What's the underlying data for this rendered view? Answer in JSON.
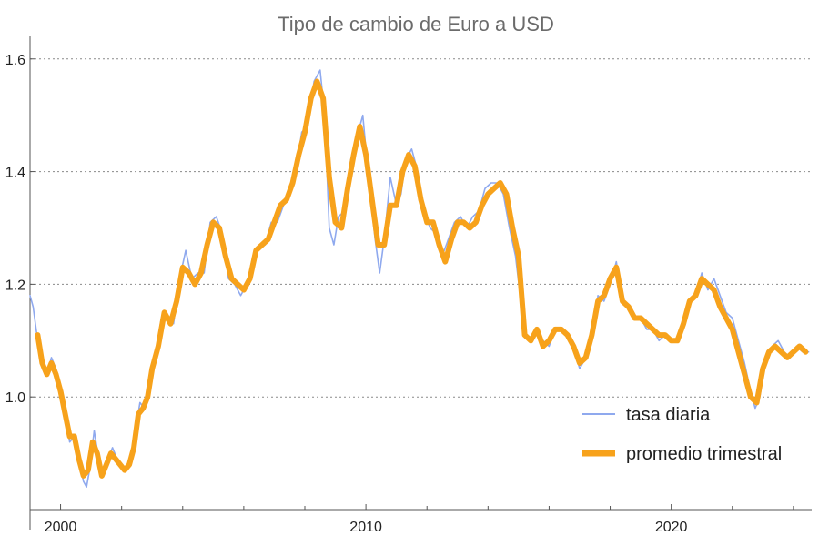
{
  "chart_data": {
    "type": "line",
    "title": "Tipo de cambio de Euro a USD",
    "xlabel": "",
    "ylabel": "",
    "xlim": [
      1999.0,
      2024.6
    ],
    "ylim": [
      0.8,
      1.64
    ],
    "x_ticks": [
      2000,
      2010,
      2020
    ],
    "x_tick_labels": [
      "2000",
      "2010",
      "2020"
    ],
    "x_minor_ticks": [
      2002,
      2004,
      2006,
      2008,
      2012,
      2014,
      2016,
      2018,
      2022,
      2024
    ],
    "y_ticks": [
      1.0,
      1.2,
      1.4,
      1.6
    ],
    "y_tick_labels": [
      "1.0",
      "1.2",
      "1.4",
      "1.6"
    ],
    "y_minor_ticks": [
      0.8
    ],
    "grid": "horizontal dotted",
    "legend": "bottom-right",
    "series": [
      {
        "name": "tasa diaria",
        "color": "#8fa9ee",
        "style": "thin",
        "x": [
          1999.0,
          1999.1,
          1999.25,
          1999.4,
          1999.55,
          1999.7,
          1999.85,
          2000.0,
          2000.15,
          2000.3,
          2000.45,
          2000.6,
          2000.75,
          2000.85,
          2000.95,
          2001.1,
          2001.25,
          2001.4,
          2001.55,
          2001.7,
          2001.85,
          2002.0,
          2002.15,
          2002.3,
          2002.45,
          2002.6,
          2002.75,
          2002.9,
          2003.1,
          2003.3,
          2003.5,
          2003.7,
          2003.9,
          2004.1,
          2004.3,
          2004.5,
          2004.7,
          2004.9,
          2005.1,
          2005.3,
          2005.5,
          2005.7,
          2005.9,
          2006.1,
          2006.3,
          2006.5,
          2006.7,
          2006.9,
          2007.1,
          2007.3,
          2007.5,
          2007.7,
          2007.9,
          2008.1,
          2008.3,
          2008.5,
          2008.65,
          2008.8,
          2008.95,
          2009.1,
          2009.3,
          2009.5,
          2009.7,
          2009.9,
          2010.1,
          2010.3,
          2010.45,
          2010.6,
          2010.8,
          2011.0,
          2011.15,
          2011.3,
          2011.5,
          2011.7,
          2011.9,
          2012.1,
          2012.3,
          2012.5,
          2012.7,
          2012.9,
          2013.1,
          2013.3,
          2013.5,
          2013.7,
          2013.9,
          2014.1,
          2014.3,
          2014.5,
          2014.7,
          2014.9,
          2015.05,
          2015.2,
          2015.4,
          2015.6,
          2015.8,
          2016.0,
          2016.2,
          2016.4,
          2016.6,
          2016.8,
          2017.0,
          2017.2,
          2017.4,
          2017.6,
          2017.8,
          2018.0,
          2018.2,
          2018.4,
          2018.6,
          2018.8,
          2019.0,
          2019.2,
          2019.4,
          2019.6,
          2019.8,
          2020.0,
          2020.2,
          2020.4,
          2020.6,
          2020.8,
          2021.0,
          2021.2,
          2021.4,
          2021.6,
          2021.8,
          2022.0,
          2022.2,
          2022.4,
          2022.6,
          2022.75,
          2022.9,
          2023.1,
          2023.3,
          2023.5,
          2023.7,
          2023.9,
          2024.1,
          2024.3,
          2024.5
        ],
        "values": [
          1.18,
          1.16,
          1.1,
          1.05,
          1.04,
          1.07,
          1.05,
          1.02,
          0.97,
          0.92,
          0.93,
          0.89,
          0.85,
          0.84,
          0.87,
          0.94,
          0.89,
          0.86,
          0.89,
          0.91,
          0.89,
          0.88,
          0.87,
          0.88,
          0.94,
          0.99,
          0.98,
          1.02,
          1.07,
          1.14,
          1.14,
          1.13,
          1.21,
          1.26,
          1.21,
          1.22,
          1.22,
          1.31,
          1.32,
          1.29,
          1.21,
          1.2,
          1.18,
          1.2,
          1.25,
          1.27,
          1.27,
          1.31,
          1.31,
          1.34,
          1.37,
          1.4,
          1.47,
          1.48,
          1.56,
          1.58,
          1.5,
          1.3,
          1.27,
          1.32,
          1.33,
          1.42,
          1.46,
          1.5,
          1.38,
          1.28,
          1.22,
          1.28,
          1.39,
          1.34,
          1.36,
          1.42,
          1.44,
          1.4,
          1.33,
          1.3,
          1.29,
          1.25,
          1.28,
          1.31,
          1.32,
          1.3,
          1.32,
          1.33,
          1.37,
          1.38,
          1.38,
          1.36,
          1.3,
          1.25,
          1.18,
          1.11,
          1.1,
          1.12,
          1.1,
          1.09,
          1.12,
          1.12,
          1.11,
          1.09,
          1.05,
          1.07,
          1.11,
          1.18,
          1.17,
          1.2,
          1.24,
          1.17,
          1.16,
          1.14,
          1.14,
          1.12,
          1.12,
          1.1,
          1.11,
          1.1,
          1.1,
          1.13,
          1.17,
          1.18,
          1.22,
          1.19,
          1.21,
          1.18,
          1.15,
          1.14,
          1.1,
          1.06,
          1.01,
          0.98,
          1.0,
          1.07,
          1.09,
          1.1,
          1.08,
          1.07,
          1.09,
          1.08,
          1.08
        ]
      },
      {
        "name": "promedio trimestral",
        "color": "#f7a21b",
        "style": "thick",
        "x": [
          1999.25,
          1999.4,
          1999.55,
          1999.7,
          1999.85,
          2000.0,
          2000.15,
          2000.3,
          2000.45,
          2000.6,
          2000.75,
          2000.9,
          2001.05,
          2001.2,
          2001.35,
          2001.5,
          2001.65,
          2001.8,
          2001.95,
          2002.1,
          2002.25,
          2002.4,
          2002.55,
          2002.7,
          2002.85,
          2003.0,
          2003.2,
          2003.4,
          2003.6,
          2003.8,
          2004.0,
          2004.2,
          2004.4,
          2004.6,
          2004.8,
          2005.0,
          2005.2,
          2005.4,
          2005.6,
          2005.8,
          2006.0,
          2006.2,
          2006.4,
          2006.6,
          2006.8,
          2007.0,
          2007.2,
          2007.4,
          2007.6,
          2007.8,
          2008.0,
          2008.2,
          2008.4,
          2008.6,
          2008.8,
          2009.0,
          2009.2,
          2009.4,
          2009.6,
          2009.8,
          2010.0,
          2010.2,
          2010.4,
          2010.6,
          2010.8,
          2011.0,
          2011.2,
          2011.4,
          2011.6,
          2011.8,
          2012.0,
          2012.2,
          2012.4,
          2012.6,
          2012.8,
          2013.0,
          2013.2,
          2013.4,
          2013.6,
          2013.8,
          2014.0,
          2014.2,
          2014.4,
          2014.6,
          2014.8,
          2015.0,
          2015.2,
          2015.4,
          2015.6,
          2015.8,
          2016.0,
          2016.2,
          2016.4,
          2016.6,
          2016.8,
          2017.0,
          2017.2,
          2017.4,
          2017.6,
          2017.8,
          2018.0,
          2018.2,
          2018.4,
          2018.6,
          2018.8,
          2019.0,
          2019.2,
          2019.4,
          2019.6,
          2019.8,
          2020.0,
          2020.2,
          2020.4,
          2020.6,
          2020.8,
          2021.0,
          2021.2,
          2021.4,
          2021.6,
          2021.8,
          2022.0,
          2022.2,
          2022.4,
          2022.6,
          2022.8,
          2023.0,
          2023.2,
          2023.4,
          2023.6,
          2023.8,
          2024.0,
          2024.2,
          2024.4
        ],
        "values": [
          1.11,
          1.06,
          1.04,
          1.06,
          1.04,
          1.01,
          0.97,
          0.93,
          0.93,
          0.89,
          0.86,
          0.87,
          0.92,
          0.9,
          0.86,
          0.88,
          0.9,
          0.89,
          0.88,
          0.87,
          0.88,
          0.91,
          0.97,
          0.98,
          1.0,
          1.05,
          1.09,
          1.15,
          1.13,
          1.17,
          1.23,
          1.22,
          1.2,
          1.22,
          1.27,
          1.31,
          1.3,
          1.25,
          1.21,
          1.2,
          1.19,
          1.21,
          1.26,
          1.27,
          1.28,
          1.31,
          1.34,
          1.35,
          1.38,
          1.43,
          1.47,
          1.53,
          1.56,
          1.53,
          1.39,
          1.31,
          1.3,
          1.37,
          1.43,
          1.48,
          1.43,
          1.35,
          1.27,
          1.27,
          1.34,
          1.34,
          1.4,
          1.43,
          1.41,
          1.35,
          1.31,
          1.31,
          1.27,
          1.24,
          1.28,
          1.31,
          1.31,
          1.3,
          1.31,
          1.34,
          1.36,
          1.37,
          1.38,
          1.36,
          1.3,
          1.25,
          1.11,
          1.1,
          1.12,
          1.09,
          1.1,
          1.12,
          1.12,
          1.11,
          1.09,
          1.06,
          1.07,
          1.11,
          1.17,
          1.18,
          1.21,
          1.23,
          1.17,
          1.16,
          1.14,
          1.14,
          1.13,
          1.12,
          1.11,
          1.11,
          1.1,
          1.1,
          1.13,
          1.17,
          1.18,
          1.21,
          1.2,
          1.19,
          1.16,
          1.14,
          1.12,
          1.08,
          1.04,
          1.0,
          0.99,
          1.05,
          1.08,
          1.09,
          1.08,
          1.07,
          1.08,
          1.09,
          1.08
        ]
      }
    ]
  }
}
